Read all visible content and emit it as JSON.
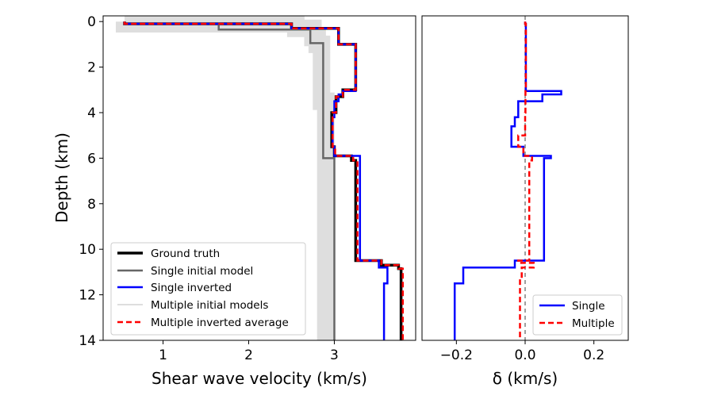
{
  "chart_data": [
    {
      "type": "line",
      "xlabel": "Shear wave velocity (km/s)",
      "ylabel": "Depth (km)",
      "xlim": [
        0.3,
        3.95
      ],
      "ylim": [
        14,
        -0.25
      ],
      "y_inverted": true,
      "xticks": [
        1,
        2,
        3
      ],
      "xtick_labels": [
        "1",
        "2",
        "3"
      ],
      "yticks": [
        0,
        2,
        4,
        6,
        8,
        10,
        12,
        14
      ],
      "ytick_labels": [
        "0",
        "2",
        "4",
        "6",
        "8",
        "10",
        "12",
        "14"
      ],
      "grid": false,
      "legend": "lower-left",
      "series": [
        {
          "name": "Multiple initial models",
          "style": "band",
          "color": "#d3d3d3",
          "values": [
            [
              0.55,
              0
            ],
            [
              0.55,
              0.1
            ],
            [
              2.55,
              0.1
            ],
            [
              2.55,
              0.3
            ],
            [
              2.75,
              0.3
            ],
            [
              2.75,
              0.7
            ],
            [
              2.8,
              0.7
            ],
            [
              2.8,
              1.0
            ],
            [
              2.85,
              1.0
            ],
            [
              2.85,
              3.5
            ],
            [
              2.9,
              3.5
            ],
            [
              2.9,
              14
            ]
          ]
        },
        {
          "name": "Ground truth",
          "style": "solid",
          "color": "#000000",
          "values": [
            [
              0.55,
              0
            ],
            [
              0.55,
              0.1
            ],
            [
              2.5,
              0.1
            ],
            [
              2.5,
              0.3
            ],
            [
              3.05,
              0.3
            ],
            [
              3.05,
              1.0
            ],
            [
              3.25,
              1.0
            ],
            [
              3.25,
              3.0
            ],
            [
              3.1,
              3.0
            ],
            [
              3.1,
              3.3
            ],
            [
              3.02,
              3.3
            ],
            [
              3.02,
              4.0
            ],
            [
              2.97,
              4.0
            ],
            [
              2.97,
              5.5
            ],
            [
              3.0,
              5.5
            ],
            [
              3.0,
              5.9
            ],
            [
              3.2,
              5.9
            ],
            [
              3.2,
              6.1
            ],
            [
              3.25,
              6.1
            ],
            [
              3.25,
              10.5
            ],
            [
              3.55,
              10.5
            ],
            [
              3.55,
              10.7
            ],
            [
              3.75,
              10.7
            ],
            [
              3.75,
              10.85
            ],
            [
              3.78,
              10.85
            ],
            [
              3.78,
              14
            ]
          ]
        },
        {
          "name": "Single initial model",
          "style": "solid",
          "color": "#666666",
          "values": [
            [
              0.55,
              0
            ],
            [
              0.55,
              0.1
            ],
            [
              1.65,
              0.1
            ],
            [
              1.65,
              0.35
            ],
            [
              2.72,
              0.35
            ],
            [
              2.72,
              0.95
            ],
            [
              2.87,
              0.95
            ],
            [
              2.87,
              6.0
            ],
            [
              3.0,
              6.0
            ],
            [
              3.0,
              14
            ]
          ]
        },
        {
          "name": "Single inverted",
          "style": "solid",
          "color": "#0000ff",
          "values": [
            [
              0.55,
              0
            ],
            [
              0.55,
              0.1
            ],
            [
              2.5,
              0.1
            ],
            [
              2.5,
              0.3
            ],
            [
              3.05,
              0.3
            ],
            [
              3.05,
              1.0
            ],
            [
              3.25,
              1.0
            ],
            [
              3.25,
              3.05
            ],
            [
              3.1,
              3.05
            ],
            [
              3.1,
              3.2
            ],
            [
              3.05,
              3.2
            ],
            [
              3.05,
              3.5
            ],
            [
              3.0,
              3.5
            ],
            [
              3.0,
              4.2
            ],
            [
              2.98,
              4.2
            ],
            [
              2.98,
              5.5
            ],
            [
              3.0,
              5.5
            ],
            [
              3.0,
              5.9
            ],
            [
              3.3,
              5.9
            ],
            [
              3.3,
              10.5
            ],
            [
              3.52,
              10.5
            ],
            [
              3.52,
              10.8
            ],
            [
              3.62,
              10.8
            ],
            [
              3.62,
              11.5
            ],
            [
              3.58,
              11.5
            ],
            [
              3.58,
              14
            ]
          ]
        },
        {
          "name": "Multiple inverted average",
          "style": "dashed",
          "color": "#ff0000",
          "values": [
            [
              0.55,
              0
            ],
            [
              0.55,
              0.1
            ],
            [
              2.5,
              0.1
            ],
            [
              2.5,
              0.3
            ],
            [
              3.05,
              0.3
            ],
            [
              3.05,
              1.0
            ],
            [
              3.25,
              1.0
            ],
            [
              3.25,
              3.0
            ],
            [
              3.1,
              3.0
            ],
            [
              3.1,
              3.3
            ],
            [
              3.02,
              3.3
            ],
            [
              3.02,
              4.0
            ],
            [
              2.98,
              4.0
            ],
            [
              2.98,
              5.5
            ],
            [
              3.01,
              5.5
            ],
            [
              3.01,
              5.9
            ],
            [
              3.22,
              5.9
            ],
            [
              3.22,
              6.1
            ],
            [
              3.27,
              6.1
            ],
            [
              3.27,
              10.5
            ],
            [
              3.55,
              10.5
            ],
            [
              3.55,
              10.7
            ],
            [
              3.75,
              10.7
            ],
            [
              3.75,
              10.85
            ],
            [
              3.8,
              10.85
            ],
            [
              3.8,
              14
            ]
          ]
        }
      ]
    },
    {
      "type": "line",
      "xlabel": "δ (km/s)",
      "ylabel": "",
      "xlim": [
        -0.3,
        0.3
      ],
      "ylim": [
        14,
        -0.25
      ],
      "y_inverted": true,
      "xticks": [
        -0.2,
        0.0,
        0.2
      ],
      "xtick_labels": [
        "−0.2",
        "0.0",
        "0.2"
      ],
      "grid": false,
      "legend": "lower-right",
      "zero_line": {
        "x": 0,
        "style": "dashed",
        "color": "#808080"
      },
      "series": [
        {
          "name": "Single",
          "style": "solid",
          "color": "#0000ff",
          "values": [
            [
              0,
              0
            ],
            [
              0,
              0.1
            ],
            [
              0.002,
              0.1
            ],
            [
              0.002,
              3.05
            ],
            [
              0.105,
              3.05
            ],
            [
              0.105,
              3.2
            ],
            [
              0.05,
              3.2
            ],
            [
              0.05,
              3.5
            ],
            [
              -0.02,
              3.5
            ],
            [
              -0.02,
              4.2
            ],
            [
              -0.03,
              4.2
            ],
            [
              -0.03,
              4.6
            ],
            [
              -0.04,
              4.6
            ],
            [
              -0.04,
              5.5
            ],
            [
              -0.005,
              5.5
            ],
            [
              -0.005,
              5.9
            ],
            [
              0.075,
              5.9
            ],
            [
              0.075,
              6.0
            ],
            [
              0.055,
              6.0
            ],
            [
              0.055,
              10.5
            ],
            [
              -0.03,
              10.5
            ],
            [
              -0.03,
              10.8
            ],
            [
              -0.18,
              10.8
            ],
            [
              -0.18,
              11.5
            ],
            [
              -0.205,
              11.5
            ],
            [
              -0.205,
              14
            ]
          ]
        },
        {
          "name": "Multiple",
          "style": "dashed",
          "color": "#ff0000",
          "values": [
            [
              0,
              0
            ],
            [
              0,
              0.1
            ],
            [
              0.002,
              0.1
            ],
            [
              0.002,
              3.05
            ],
            [
              0.001,
              3.05
            ],
            [
              0.001,
              4.0
            ],
            [
              0.0,
              4.0
            ],
            [
              0.0,
              5.0
            ],
            [
              -0.02,
              5.0
            ],
            [
              -0.02,
              5.5
            ],
            [
              -0.005,
              5.5
            ],
            [
              -0.005,
              5.9
            ],
            [
              0.02,
              5.9
            ],
            [
              0.02,
              6.1
            ],
            [
              0.012,
              6.1
            ],
            [
              0.012,
              10.5
            ],
            [
              -0.02,
              10.5
            ],
            [
              -0.02,
              10.6
            ],
            [
              0.025,
              10.6
            ],
            [
              0.025,
              10.8
            ],
            [
              -0.01,
              10.8
            ],
            [
              -0.01,
              11.3
            ],
            [
              -0.015,
              11.3
            ],
            [
              -0.015,
              14
            ]
          ]
        }
      ]
    }
  ]
}
